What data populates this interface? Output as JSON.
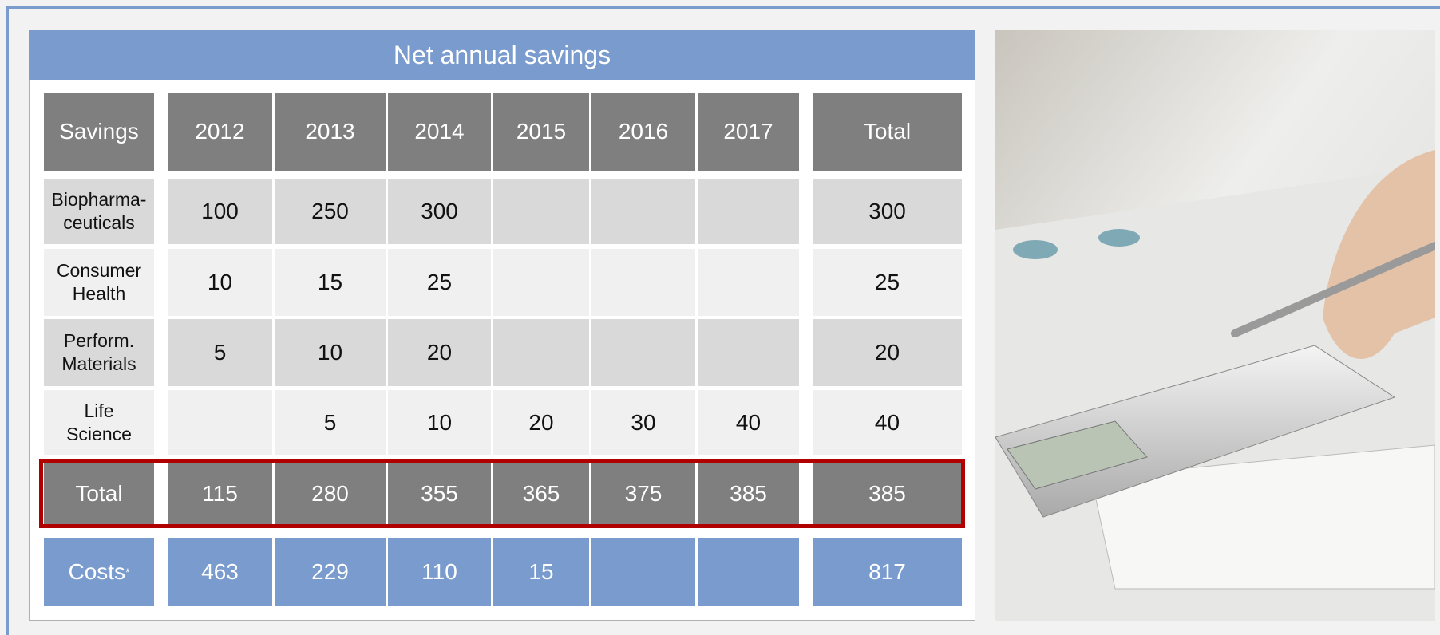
{
  "table": {
    "title": "Net annual savings",
    "header": [
      "Savings",
      "2012",
      "2013",
      "2014",
      "2015",
      "2016",
      "2017",
      "Total"
    ],
    "rows": [
      {
        "label": "Biopharma-\nceuticals",
        "values": [
          100,
          250,
          300,
          null,
          null,
          null
        ],
        "total": 300
      },
      {
        "label": "Consumer\nHealth",
        "values": [
          10,
          15,
          25,
          null,
          null,
          null
        ],
        "total": 25
      },
      {
        "label": "Perform.\nMaterials",
        "values": [
          5,
          10,
          20,
          null,
          null,
          null
        ],
        "total": 20
      },
      {
        "label": "Life\nScience",
        "values": [
          null,
          5,
          10,
          20,
          30,
          40
        ],
        "total": 40
      }
    ],
    "total_row": {
      "label": "Total",
      "values": [
        115,
        280,
        355,
        365,
        375,
        385
      ],
      "total": 385
    },
    "costs_row": {
      "label": "Costs",
      "footnote_mark": "*",
      "values": [
        463,
        229,
        110,
        15,
        null,
        null
      ],
      "total": 817
    }
  }
}
